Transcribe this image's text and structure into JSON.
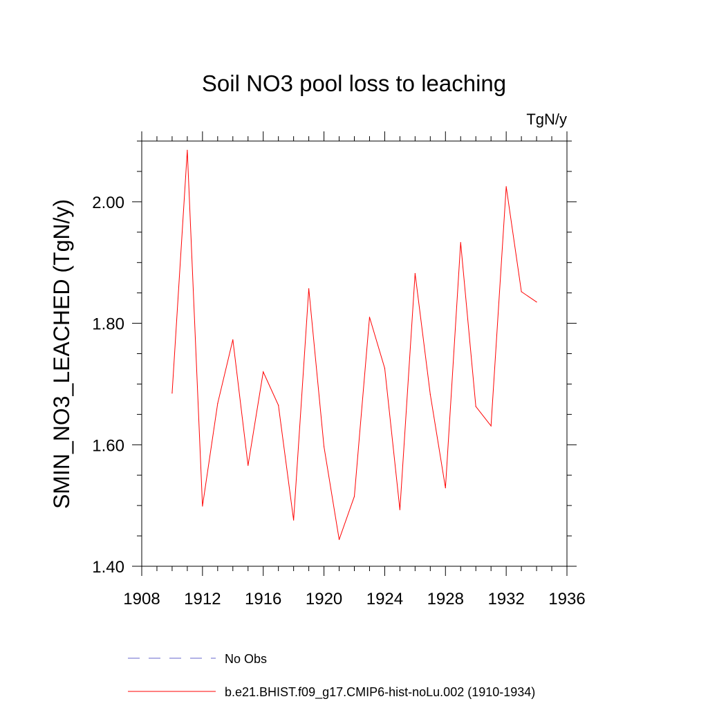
{
  "chart_data": {
    "type": "line",
    "title": "Soil NO3 pool loss to leaching",
    "units": "TgN/y",
    "ylabel": "SMIN_NO3_LEACHED  (TgN/y)",
    "xlabel": "",
    "xlim": [
      1908,
      1936
    ],
    "ylim": [
      1.4,
      2.1
    ],
    "x_ticks": [
      1908,
      1912,
      1916,
      1920,
      1924,
      1928,
      1932,
      1936
    ],
    "x_tick_labels": [
      "1908",
      "1912",
      "1916",
      "1920",
      "1924",
      "1928",
      "1932",
      "1936"
    ],
    "x_minor_step": 1,
    "y_ticks": [
      1.4,
      1.6,
      1.8,
      2.0
    ],
    "y_tick_labels": [
      "1.40",
      "1.60",
      "1.80",
      "2.00"
    ],
    "y_minor_step": 0.05,
    "grid": false,
    "legend_position": "bottom",
    "series": [
      {
        "name": "b.e21.BHIST.f09_g17.CMIP6-hist-noLu.002 (1910-1934)",
        "color": "#ff0000",
        "x": [
          1910,
          1911,
          1912,
          1913,
          1914,
          1915,
          1916,
          1917,
          1918,
          1919,
          1920,
          1921,
          1922,
          1923,
          1924,
          1925,
          1926,
          1927,
          1928,
          1929,
          1930,
          1931,
          1932,
          1933,
          1934
        ],
        "y": [
          1.685,
          2.085,
          1.499,
          1.668,
          1.773,
          1.566,
          1.72,
          1.665,
          1.476,
          1.857,
          1.597,
          1.444,
          1.515,
          1.81,
          1.726,
          1.493,
          1.882,
          1.683,
          1.529,
          1.933,
          1.663,
          1.631,
          2.025,
          1.852,
          1.835
        ]
      }
    ],
    "legend": [
      {
        "label": "No Obs",
        "color": "#6666cc",
        "style": "dashed"
      },
      {
        "label": "b.e21.BHIST.f09_g17.CMIP6-hist-noLu.002 (1910-1934)",
        "color": "#ff0000",
        "style": "solid"
      }
    ]
  }
}
